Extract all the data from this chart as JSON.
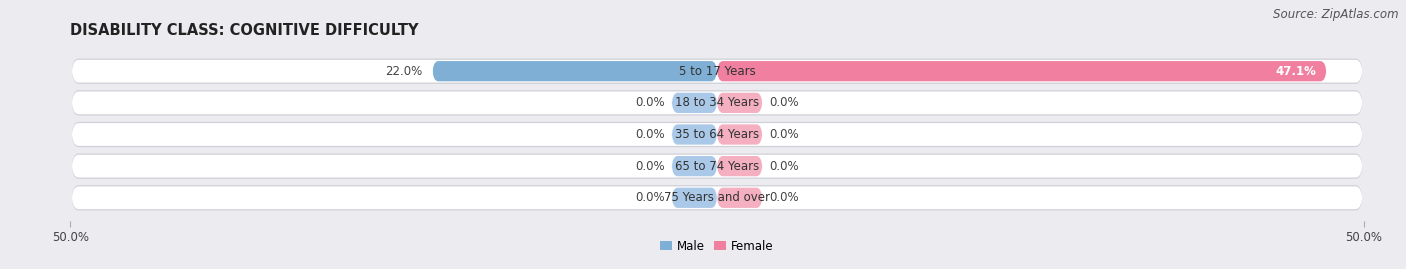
{
  "title": "DISABILITY CLASS: COGNITIVE DIFFICULTY",
  "source": "Source: ZipAtlas.com",
  "categories": [
    "5 to 17 Years",
    "18 to 34 Years",
    "35 to 64 Years",
    "65 to 74 Years",
    "75 Years and over"
  ],
  "male_values": [
    22.0,
    0.0,
    0.0,
    0.0,
    0.0
  ],
  "female_values": [
    47.1,
    0.0,
    0.0,
    0.0,
    0.0
  ],
  "male_color": "#7fafd4",
  "female_color": "#f07fa0",
  "male_stub_color": "#aac8e8",
  "female_stub_color": "#f4afc0",
  "bar_bg_color": "#ffffff",
  "background_color": "#ebebf0",
  "row_shadow_color": "#d0d0d8",
  "axis_limit": 50.0,
  "bar_height": 0.72,
  "stub_value": 3.5,
  "title_fontsize": 10.5,
  "label_fontsize": 8.5,
  "tick_fontsize": 8.5,
  "source_fontsize": 8.5
}
